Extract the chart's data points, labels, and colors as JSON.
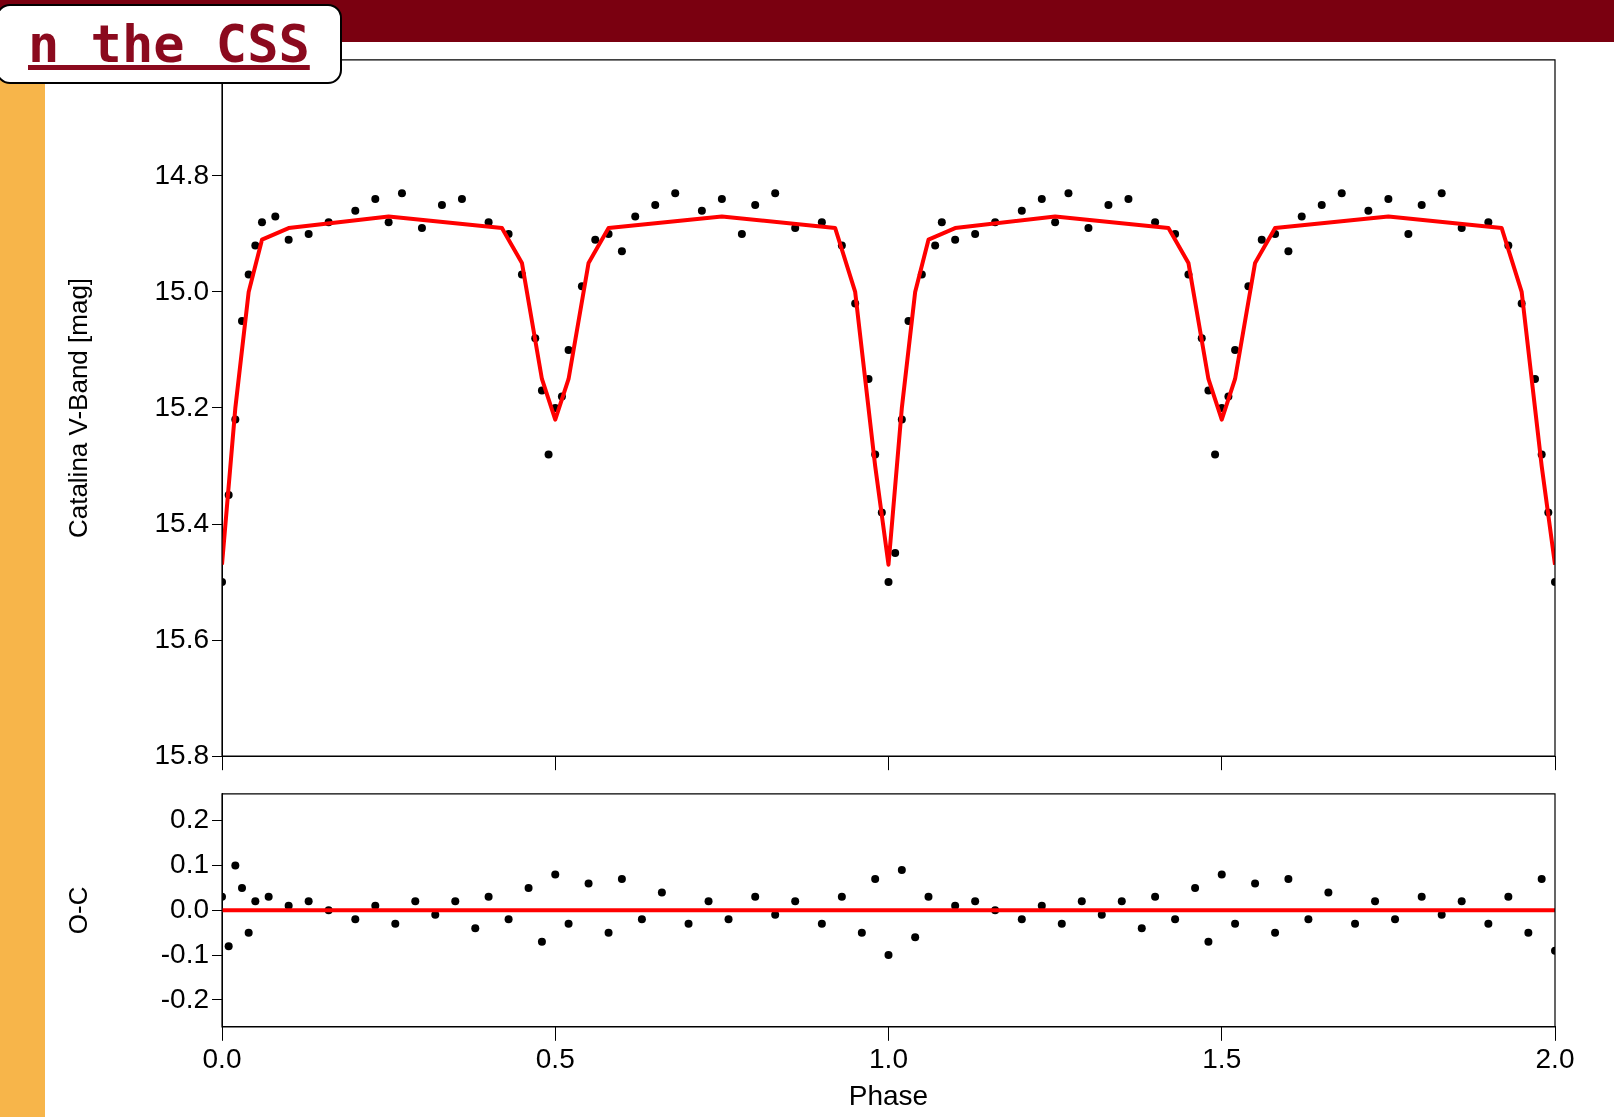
{
  "chart_data": [
    {
      "type": "scatter",
      "title": "n the CSS",
      "ylabel": "Catalina V-Band [mag]",
      "xlim": [
        0,
        2
      ],
      "ylim": [
        15.8,
        14.6
      ],
      "grid": false,
      "legend": false,
      "tick_labels": "y",
      "xticks": [
        0,
        0.5,
        1,
        1.5,
        2
      ],
      "yticks": [
        {
          "value": 14.8,
          "label": "14.8"
        },
        {
          "value": 15,
          "label": "15.0"
        },
        {
          "value": 15.2,
          "label": "15.2"
        },
        {
          "value": 15.4,
          "label": "15.4"
        },
        {
          "value": 15.6,
          "label": "15.6"
        },
        {
          "value": 15.8,
          "label": "15.8"
        }
      ],
      "series": [
        {
          "type": "scatter",
          "marker": "circle",
          "color": "#000000",
          "x": [
            0.0,
            0.01,
            0.02,
            0.03,
            0.04,
            0.05,
            0.06,
            0.08,
            0.1,
            0.13,
            0.16,
            0.2,
            0.23,
            0.25,
            0.27,
            0.3,
            0.33,
            0.36,
            0.4,
            0.43,
            0.45,
            0.47,
            0.48,
            0.49,
            0.5,
            0.51,
            0.52,
            0.54,
            0.56,
            0.58,
            0.6,
            0.62,
            0.65,
            0.68,
            0.72,
            0.75,
            0.78,
            0.8,
            0.83,
            0.86,
            0.9,
            0.93,
            0.95,
            0.97,
            0.98,
            0.99,
            1.0,
            1.01,
            1.02,
            1.03,
            1.05,
            1.07,
            1.08,
            1.1,
            1.13,
            1.16,
            1.2,
            1.23,
            1.25,
            1.27,
            1.3,
            1.33,
            1.36,
            1.4,
            1.43,
            1.45,
            1.47,
            1.48,
            1.49,
            1.5,
            1.51,
            1.52,
            1.54,
            1.56,
            1.58,
            1.6,
            1.62,
            1.65,
            1.68,
            1.72,
            1.75,
            1.78,
            1.8,
            1.83,
            1.86,
            1.9,
            1.93,
            1.95,
            1.97,
            1.98,
            1.99,
            2.0
          ],
          "values": [
            15.5,
            15.35,
            15.22,
            15.05,
            14.97,
            14.92,
            14.88,
            14.87,
            14.91,
            14.9,
            14.88,
            14.86,
            14.84,
            14.88,
            14.83,
            14.89,
            14.85,
            14.84,
            14.88,
            14.9,
            14.97,
            15.08,
            15.17,
            15.28,
            15.2,
            15.18,
            15.1,
            14.99,
            14.91,
            14.9,
            14.93,
            14.87,
            14.85,
            14.83,
            14.86,
            14.84,
            14.9,
            14.85,
            14.83,
            14.89,
            14.88,
            14.92,
            15.02,
            15.15,
            15.28,
            15.38,
            15.5,
            15.45,
            15.22,
            15.05,
            14.97,
            14.92,
            14.88,
            14.91,
            14.9,
            14.88,
            14.86,
            14.84,
            14.88,
            14.83,
            14.89,
            14.85,
            14.84,
            14.88,
            14.9,
            14.97,
            15.08,
            15.17,
            15.28,
            15.2,
            15.18,
            15.1,
            14.99,
            14.91,
            14.9,
            14.93,
            14.87,
            14.85,
            14.83,
            14.86,
            14.84,
            14.9,
            14.85,
            14.83,
            14.89,
            14.88,
            14.92,
            15.02,
            15.15,
            15.28,
            15.38,
            15.5
          ]
        },
        {
          "type": "line",
          "color": "#ff0000",
          "x": [
            0,
            0.02,
            0.04,
            0.06,
            0.1,
            0.25,
            0.42,
            0.45,
            0.48,
            0.5,
            0.52,
            0.55,
            0.58,
            0.75,
            0.92,
            0.95,
            0.98,
            1.0,
            1.02,
            1.04,
            1.06,
            1.1,
            1.25,
            1.42,
            1.45,
            1.48,
            1.5,
            1.52,
            1.55,
            1.58,
            1.75,
            1.92,
            1.95,
            1.98,
            2.0
          ],
          "values": [
            15.47,
            15.2,
            15.0,
            14.91,
            14.89,
            14.87,
            14.89,
            14.95,
            15.15,
            15.22,
            15.15,
            14.95,
            14.89,
            14.87,
            14.89,
            15.0,
            15.3,
            15.47,
            15.2,
            15.0,
            14.91,
            14.89,
            14.87,
            14.89,
            14.95,
            15.15,
            15.22,
            15.15,
            14.95,
            14.89,
            14.87,
            14.89,
            15.0,
            15.3,
            15.47
          ]
        }
      ]
    },
    {
      "type": "scatter",
      "xlabel": "Phase",
      "ylabel": "O-C",
      "xlim": [
        0,
        2
      ],
      "ylim": [
        -0.26,
        0.26
      ],
      "grid": false,
      "legend": false,
      "xticks": [
        {
          "value": 0,
          "label": "0.0"
        },
        {
          "value": 0.5,
          "label": "0.5"
        },
        {
          "value": 1,
          "label": "1.0"
        },
        {
          "value": 1.5,
          "label": "1.5"
        },
        {
          "value": 2,
          "label": "2.0"
        }
      ],
      "yticks": [
        {
          "value": 0.2,
          "label": "0.2"
        },
        {
          "value": 0.1,
          "label": "0.1"
        },
        {
          "value": 0,
          "label": "0.0"
        },
        {
          "value": -0.1,
          "label": "-0.1"
        },
        {
          "value": -0.2,
          "label": "-0.2"
        }
      ],
      "series": [
        {
          "type": "scatter",
          "marker": "circle",
          "color": "#000000",
          "x": [
            0.0,
            0.01,
            0.02,
            0.03,
            0.04,
            0.05,
            0.07,
            0.1,
            0.13,
            0.16,
            0.2,
            0.23,
            0.26,
            0.29,
            0.32,
            0.35,
            0.38,
            0.4,
            0.43,
            0.46,
            0.48,
            0.5,
            0.52,
            0.55,
            0.58,
            0.6,
            0.63,
            0.66,
            0.7,
            0.73,
            0.76,
            0.8,
            0.83,
            0.86,
            0.9,
            0.93,
            0.96,
            0.98,
            1.0,
            1.02,
            1.04,
            1.06,
            1.1,
            1.13,
            1.16,
            1.2,
            1.23,
            1.26,
            1.29,
            1.32,
            1.35,
            1.38,
            1.4,
            1.43,
            1.46,
            1.48,
            1.5,
            1.52,
            1.55,
            1.58,
            1.6,
            1.63,
            1.66,
            1.7,
            1.73,
            1.76,
            1.8,
            1.83,
            1.86,
            1.9,
            1.93,
            1.96,
            1.98,
            2.0
          ],
          "values": [
            0.03,
            -0.08,
            0.1,
            0.05,
            -0.05,
            0.02,
            0.03,
            0.01,
            0.02,
            0.0,
            -0.02,
            0.01,
            -0.03,
            0.02,
            -0.01,
            0.02,
            -0.04,
            0.03,
            -0.02,
            0.05,
            -0.07,
            0.08,
            -0.03,
            0.06,
            -0.05,
            0.07,
            -0.02,
            0.04,
            -0.03,
            0.02,
            -0.02,
            0.03,
            -0.01,
            0.02,
            -0.03,
            0.03,
            -0.05,
            0.07,
            -0.1,
            0.09,
            -0.06,
            0.03,
            0.01,
            0.02,
            0.0,
            -0.02,
            0.01,
            -0.03,
            0.02,
            -0.01,
            0.02,
            -0.04,
            0.03,
            -0.02,
            0.05,
            -0.07,
            0.08,
            -0.03,
            0.06,
            -0.05,
            0.07,
            -0.02,
            0.04,
            -0.03,
            0.02,
            -0.02,
            0.03,
            -0.01,
            0.02,
            -0.03,
            0.03,
            -0.05,
            0.07,
            -0.09
          ]
        },
        {
          "type": "line",
          "color": "#ff0000",
          "x": [
            0,
            2
          ],
          "values": [
            0,
            0
          ]
        }
      ]
    }
  ]
}
